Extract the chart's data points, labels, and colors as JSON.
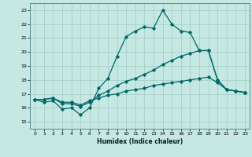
{
  "xlabel": "Humidex (Indice chaleur)",
  "xlim": [
    -0.5,
    23.5
  ],
  "ylim": [
    14.5,
    23.5
  ],
  "yticks": [
    15,
    16,
    17,
    18,
    19,
    20,
    21,
    22,
    23
  ],
  "xticks": [
    0,
    1,
    2,
    3,
    4,
    5,
    6,
    7,
    8,
    9,
    10,
    11,
    12,
    13,
    14,
    15,
    16,
    17,
    18,
    19,
    20,
    21,
    22,
    23
  ],
  "bg_color": "#c5e8e2",
  "grid_color": "#a0ccc5",
  "line_color": "#006868",
  "line1_x": [
    0,
    1,
    2,
    3,
    4,
    5,
    6,
    7,
    8,
    9,
    10,
    11,
    12,
    13,
    14,
    15,
    16,
    17,
    18,
    19,
    20,
    21,
    22,
    23
  ],
  "line1_y": [
    16.6,
    16.4,
    16.5,
    15.9,
    16.0,
    15.5,
    16.0,
    17.4,
    18.1,
    19.7,
    21.1,
    21.5,
    21.8,
    21.7,
    23.0,
    22.0,
    21.5,
    21.4,
    20.1,
    20.1,
    18.0,
    17.3,
    17.2,
    17.1
  ],
  "line2_x": [
    0,
    1,
    2,
    3,
    4,
    5,
    6,
    7,
    8,
    9,
    10,
    11,
    12,
    13,
    14,
    15,
    16,
    17,
    18,
    19,
    20,
    21,
    22,
    23
  ],
  "line2_y": [
    16.6,
    16.6,
    16.7,
    16.3,
    16.3,
    16.1,
    16.4,
    16.9,
    17.2,
    17.6,
    17.9,
    18.1,
    18.4,
    18.7,
    19.1,
    19.4,
    19.7,
    19.9,
    20.1,
    20.1,
    18.0,
    17.3,
    17.2,
    17.1
  ],
  "line3_x": [
    0,
    1,
    2,
    3,
    4,
    5,
    6,
    7,
    8,
    9,
    10,
    11,
    12,
    13,
    14,
    15,
    16,
    17,
    18,
    19,
    20,
    21,
    22,
    23
  ],
  "line3_y": [
    16.6,
    16.6,
    16.7,
    16.4,
    16.4,
    16.2,
    16.5,
    16.7,
    16.9,
    17.0,
    17.2,
    17.3,
    17.4,
    17.6,
    17.7,
    17.8,
    17.9,
    18.0,
    18.1,
    18.2,
    17.8,
    17.3,
    17.2,
    17.1
  ]
}
